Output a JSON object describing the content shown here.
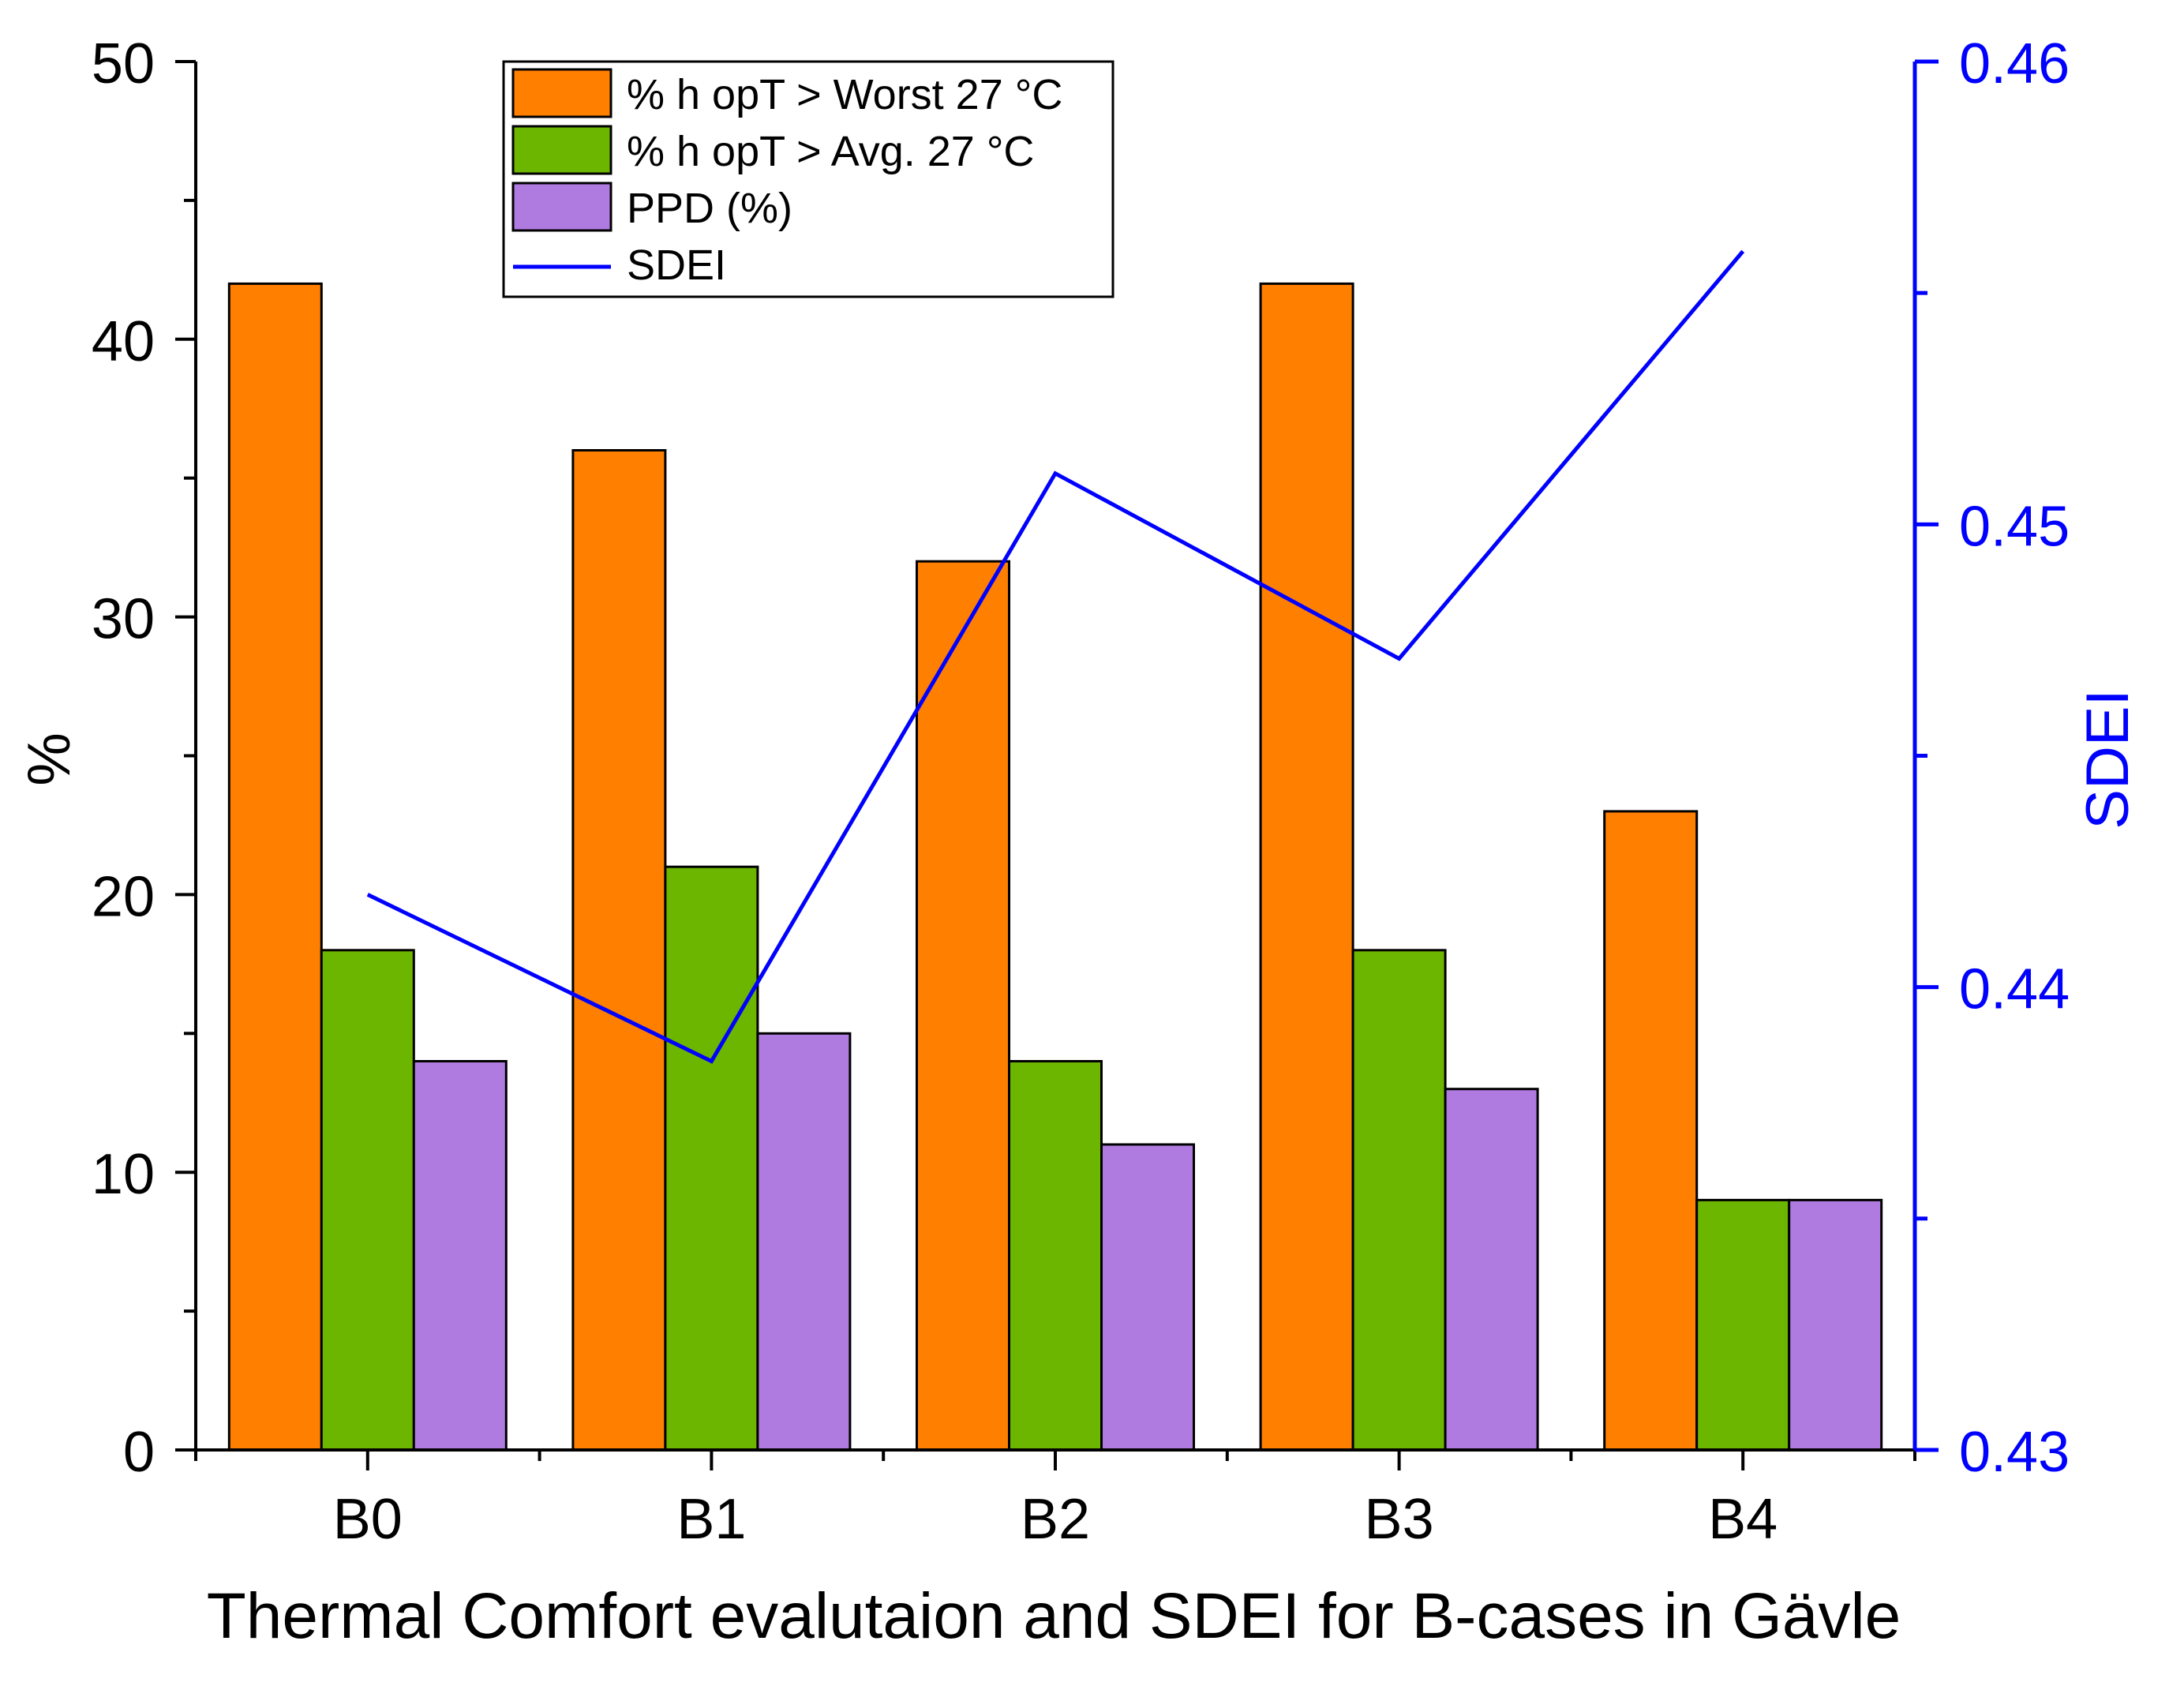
{
  "chart_data": {
    "type": "bar",
    "title": "",
    "xlabel": "Thermal Comfort evalutaion and SDEI for B-cases in Gävle",
    "ylabel": "%",
    "y2label": "SDEI",
    "categories": [
      "B0",
      "B1",
      "B2",
      "B3",
      "B4"
    ],
    "ylim": [
      0,
      50
    ],
    "yticks": [
      0,
      10,
      20,
      30,
      40,
      50
    ],
    "y2lim": [
      0.43,
      0.46
    ],
    "y2ticks": [
      "0.43",
      "0.44",
      "0.45",
      "0.46"
    ],
    "series": [
      {
        "name": "% h opT > Worst 27 °C",
        "kind": "bar",
        "color": "#ff7f00",
        "values": [
          42,
          36,
          32,
          42,
          23
        ]
      },
      {
        "name": "% h opT > Avg. 27 °C",
        "kind": "bar",
        "color": "#6db600",
        "values": [
          18,
          21,
          14,
          18,
          9
        ]
      },
      {
        "name": "PPD (%)",
        "kind": "bar",
        "color": "#b07be0",
        "values": [
          14,
          15,
          11,
          13,
          9
        ]
      },
      {
        "name": "SDEI",
        "kind": "line",
        "axis": "right",
        "color": "#0000ff",
        "values": [
          0.442,
          0.4384,
          0.4511,
          0.4471,
          0.4559
        ]
      }
    ],
    "legend_position": "top-center",
    "grid": false
  }
}
